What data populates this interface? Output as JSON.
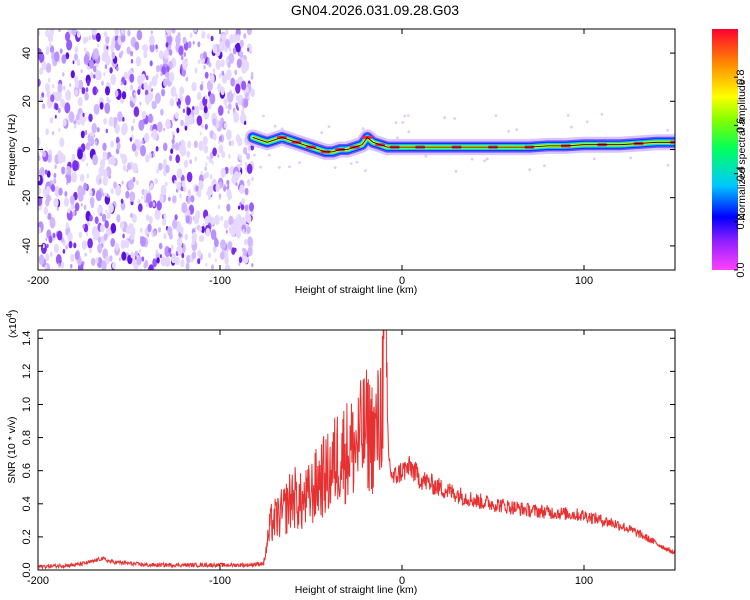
{
  "title": "GN04.2026.031.09.28.G03",
  "colors": {
    "snr_line": "#e83030",
    "spec_line": "#000000",
    "axis": "#000000"
  },
  "chart_data": [
    {
      "type": "heatmap",
      "name": "spectrogram",
      "xlabel": "Height of straight line (km)",
      "ylabel": "Frequency (Hz)",
      "xlim": [
        -200,
        150
      ],
      "ylim": [
        -50,
        50
      ],
      "x_ticks": [
        -200,
        -100,
        0,
        100
      ],
      "x_tick_labels": [
        "-200",
        "-100",
        "0",
        "100"
      ],
      "y_ticks": [
        -40,
        -20,
        0,
        20,
        40
      ],
      "y_tick_labels": [
        "-40",
        "-20",
        "0",
        "20",
        "40"
      ],
      "noise_region_x": [
        -200,
        -82
      ],
      "doppler_trace": {
        "x": [
          -82,
          -78,
          -74,
          -70,
          -66,
          -62,
          -58,
          -54,
          -50,
          -46,
          -42,
          -38,
          -34,
          -30,
          -26,
          -22,
          -19,
          -16,
          -12,
          -8,
          -4,
          0,
          10,
          20,
          30,
          40,
          50,
          60,
          70,
          80,
          90,
          100,
          110,
          120,
          130,
          140,
          150
        ],
        "y": [
          5,
          4,
          3,
          4,
          5,
          4,
          3,
          2,
          1,
          0,
          -1,
          -1,
          0,
          0,
          1,
          2,
          5,
          3,
          2,
          1,
          1,
          1,
          1,
          1,
          1,
          1,
          1,
          1,
          1,
          1.5,
          1.5,
          2,
          2,
          2,
          2.5,
          3,
          3
        ]
      },
      "colorbar": {
        "label": "Normalized spectral amplitude",
        "range": [
          0.0,
          1.0
        ],
        "ticks": [
          0.0,
          0.2,
          0.4,
          0.6,
          0.8
        ],
        "tick_labels": [
          "0.0",
          "0.2",
          "0.4",
          "0.6",
          "0.8"
        ]
      }
    },
    {
      "type": "line",
      "name": "snr",
      "xlabel": "Height of straight line (km)",
      "ylabel": "SNR (10 * v/v)",
      "multiplier_label": "(x10",
      "multiplier_exp": "4",
      "xlim": [
        -200,
        150
      ],
      "ylim": [
        0.0,
        1.45
      ],
      "x_ticks": [
        -200,
        -100,
        0,
        100
      ],
      "x_tick_labels": [
        "-200",
        "-100",
        "0",
        "100"
      ],
      "y_ticks": [
        0.0,
        0.2,
        0.4,
        0.6,
        0.8,
        1.0,
        1.2,
        1.4
      ],
      "y_tick_labels": [
        "0.0",
        "0.2",
        "0.4",
        "0.6",
        "0.8",
        "1.0",
        "1.2",
        "1.4"
      ],
      "series": [
        {
          "name": "SNR",
          "x": [
            -200,
            -180,
            -170,
            -165,
            -160,
            -140,
            -120,
            -100,
            -85,
            -76,
            -72,
            -65,
            -60,
            -55,
            -50,
            -45,
            -40,
            -35,
            -30,
            -25,
            -20,
            -15,
            -12,
            -9,
            -8,
            -7,
            -5,
            0,
            5,
            10,
            20,
            30,
            40,
            50,
            60,
            70,
            80,
            90,
            100,
            110,
            120,
            130,
            140,
            150
          ],
          "values": [
            0.02,
            0.03,
            0.05,
            0.07,
            0.05,
            0.03,
            0.03,
            0.03,
            0.03,
            0.04,
            0.28,
            0.35,
            0.45,
            0.4,
            0.46,
            0.55,
            0.58,
            0.7,
            0.72,
            0.75,
            0.85,
            0.8,
            0.9,
            1.4,
            0.9,
            0.65,
            0.55,
            0.6,
            0.62,
            0.55,
            0.5,
            0.46,
            0.42,
            0.4,
            0.38,
            0.36,
            0.35,
            0.34,
            0.33,
            0.3,
            0.27,
            0.22,
            0.16,
            0.1
          ]
        }
      ]
    }
  ]
}
